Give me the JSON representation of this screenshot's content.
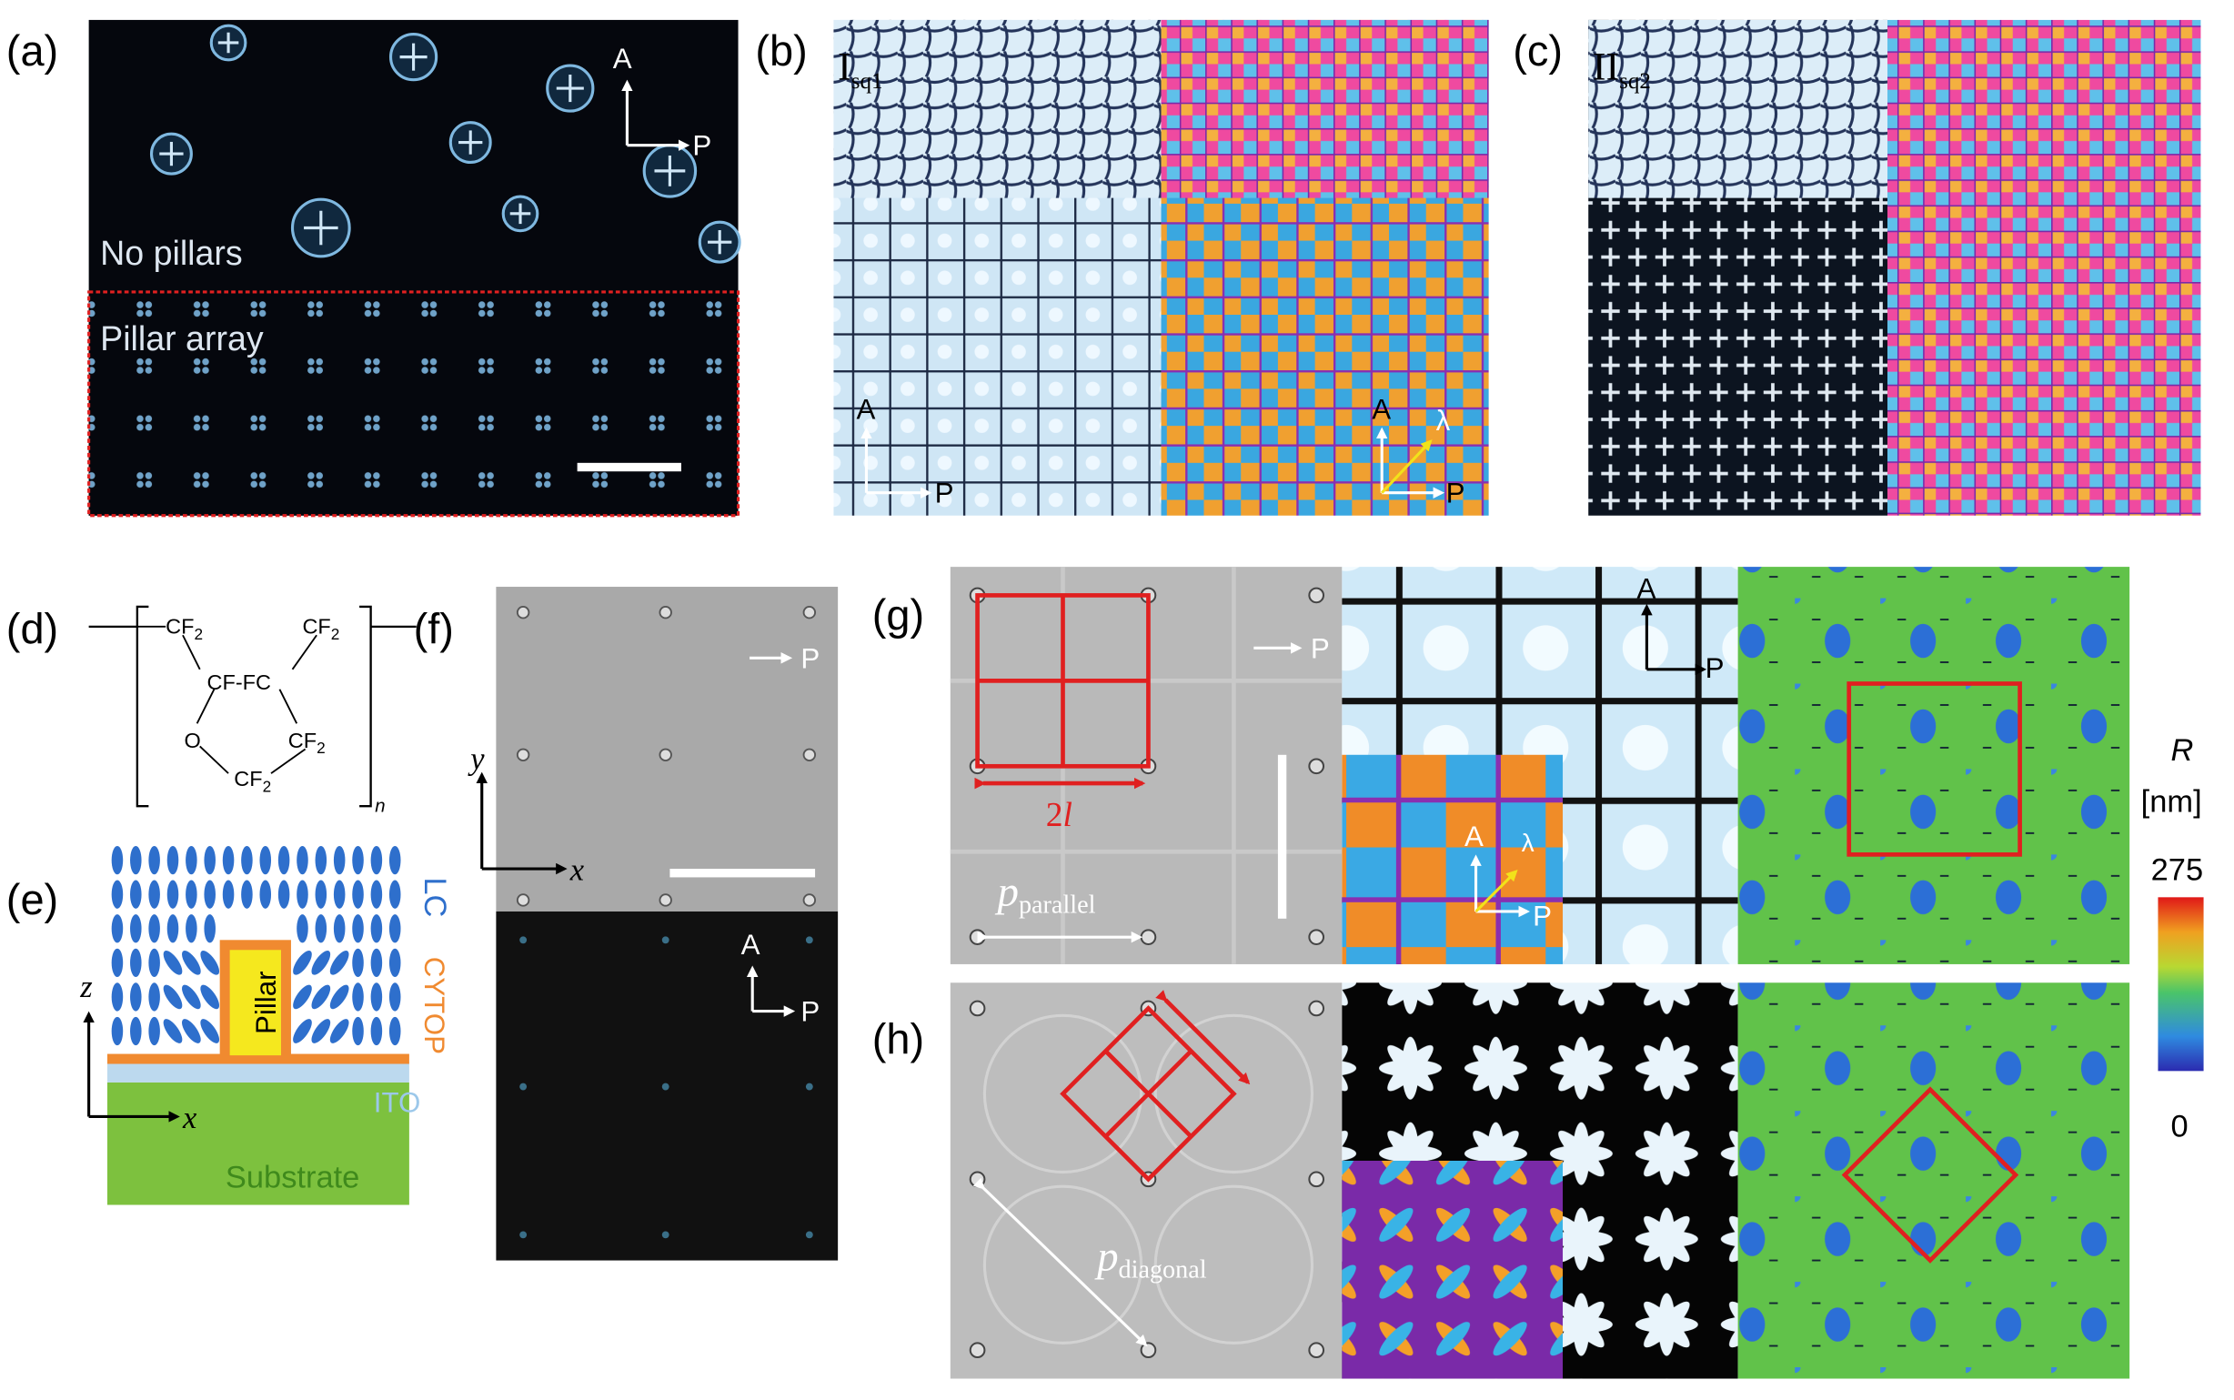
{
  "panels": {
    "a": {
      "label": "(a)",
      "analyzer": "A",
      "polarizer": "P",
      "region_top": "No pillars",
      "region_bottom": "Pillar array"
    },
    "b": {
      "label": "(b)",
      "texture": {
        "main": "I",
        "sub": "sq1"
      },
      "left_analyzer": "A",
      "left_polarizer": "P",
      "right_analyzer": "A",
      "right_lambda": "λ",
      "right_polarizer": "P"
    },
    "c": {
      "label": "(c)",
      "texture": {
        "main": "II",
        "sub": "sq2"
      }
    },
    "d": {
      "label": "(d)",
      "groups": [
        {
          "main": "CF",
          "sub": "2"
        },
        {
          "main": "CF",
          "sub": "2"
        },
        {
          "main": "CF-FC"
        },
        {
          "main": "O"
        },
        {
          "main": "CF",
          "sub": "2"
        },
        {
          "main": "CF",
          "sub": "2"
        }
      ],
      "repeat": "n"
    },
    "e": {
      "label": "(e)",
      "lc": "LC",
      "pillar": "Pillar",
      "cytop": "CYTOP",
      "ito": "ITO",
      "substrate": "Substrate",
      "z_axis": "z",
      "x_axis": "x"
    },
    "f": {
      "label": "(f)",
      "top_polarizer": "P",
      "y_axis": "y",
      "x_axis": "x",
      "bottom_analyzer": "A",
      "bottom_polarizer": "P"
    },
    "g": {
      "label": "(g)",
      "spacing": {
        "number": "2",
        "symbol": "l"
      },
      "period": {
        "main": "p",
        "sub": "parallel"
      },
      "polarizer": "P",
      "middle_analyzer": "A",
      "middle_polarizer": "P",
      "inset_analyzer": "A",
      "inset_lambda": "λ",
      "inset_polarizer": "P",
      "colorbar": {
        "symbol": "R",
        "unit": "[nm]",
        "max": "275",
        "min": "0"
      }
    },
    "h": {
      "label": "(h)",
      "period": {
        "main": "p",
        "sub": "diagonal"
      }
    }
  }
}
